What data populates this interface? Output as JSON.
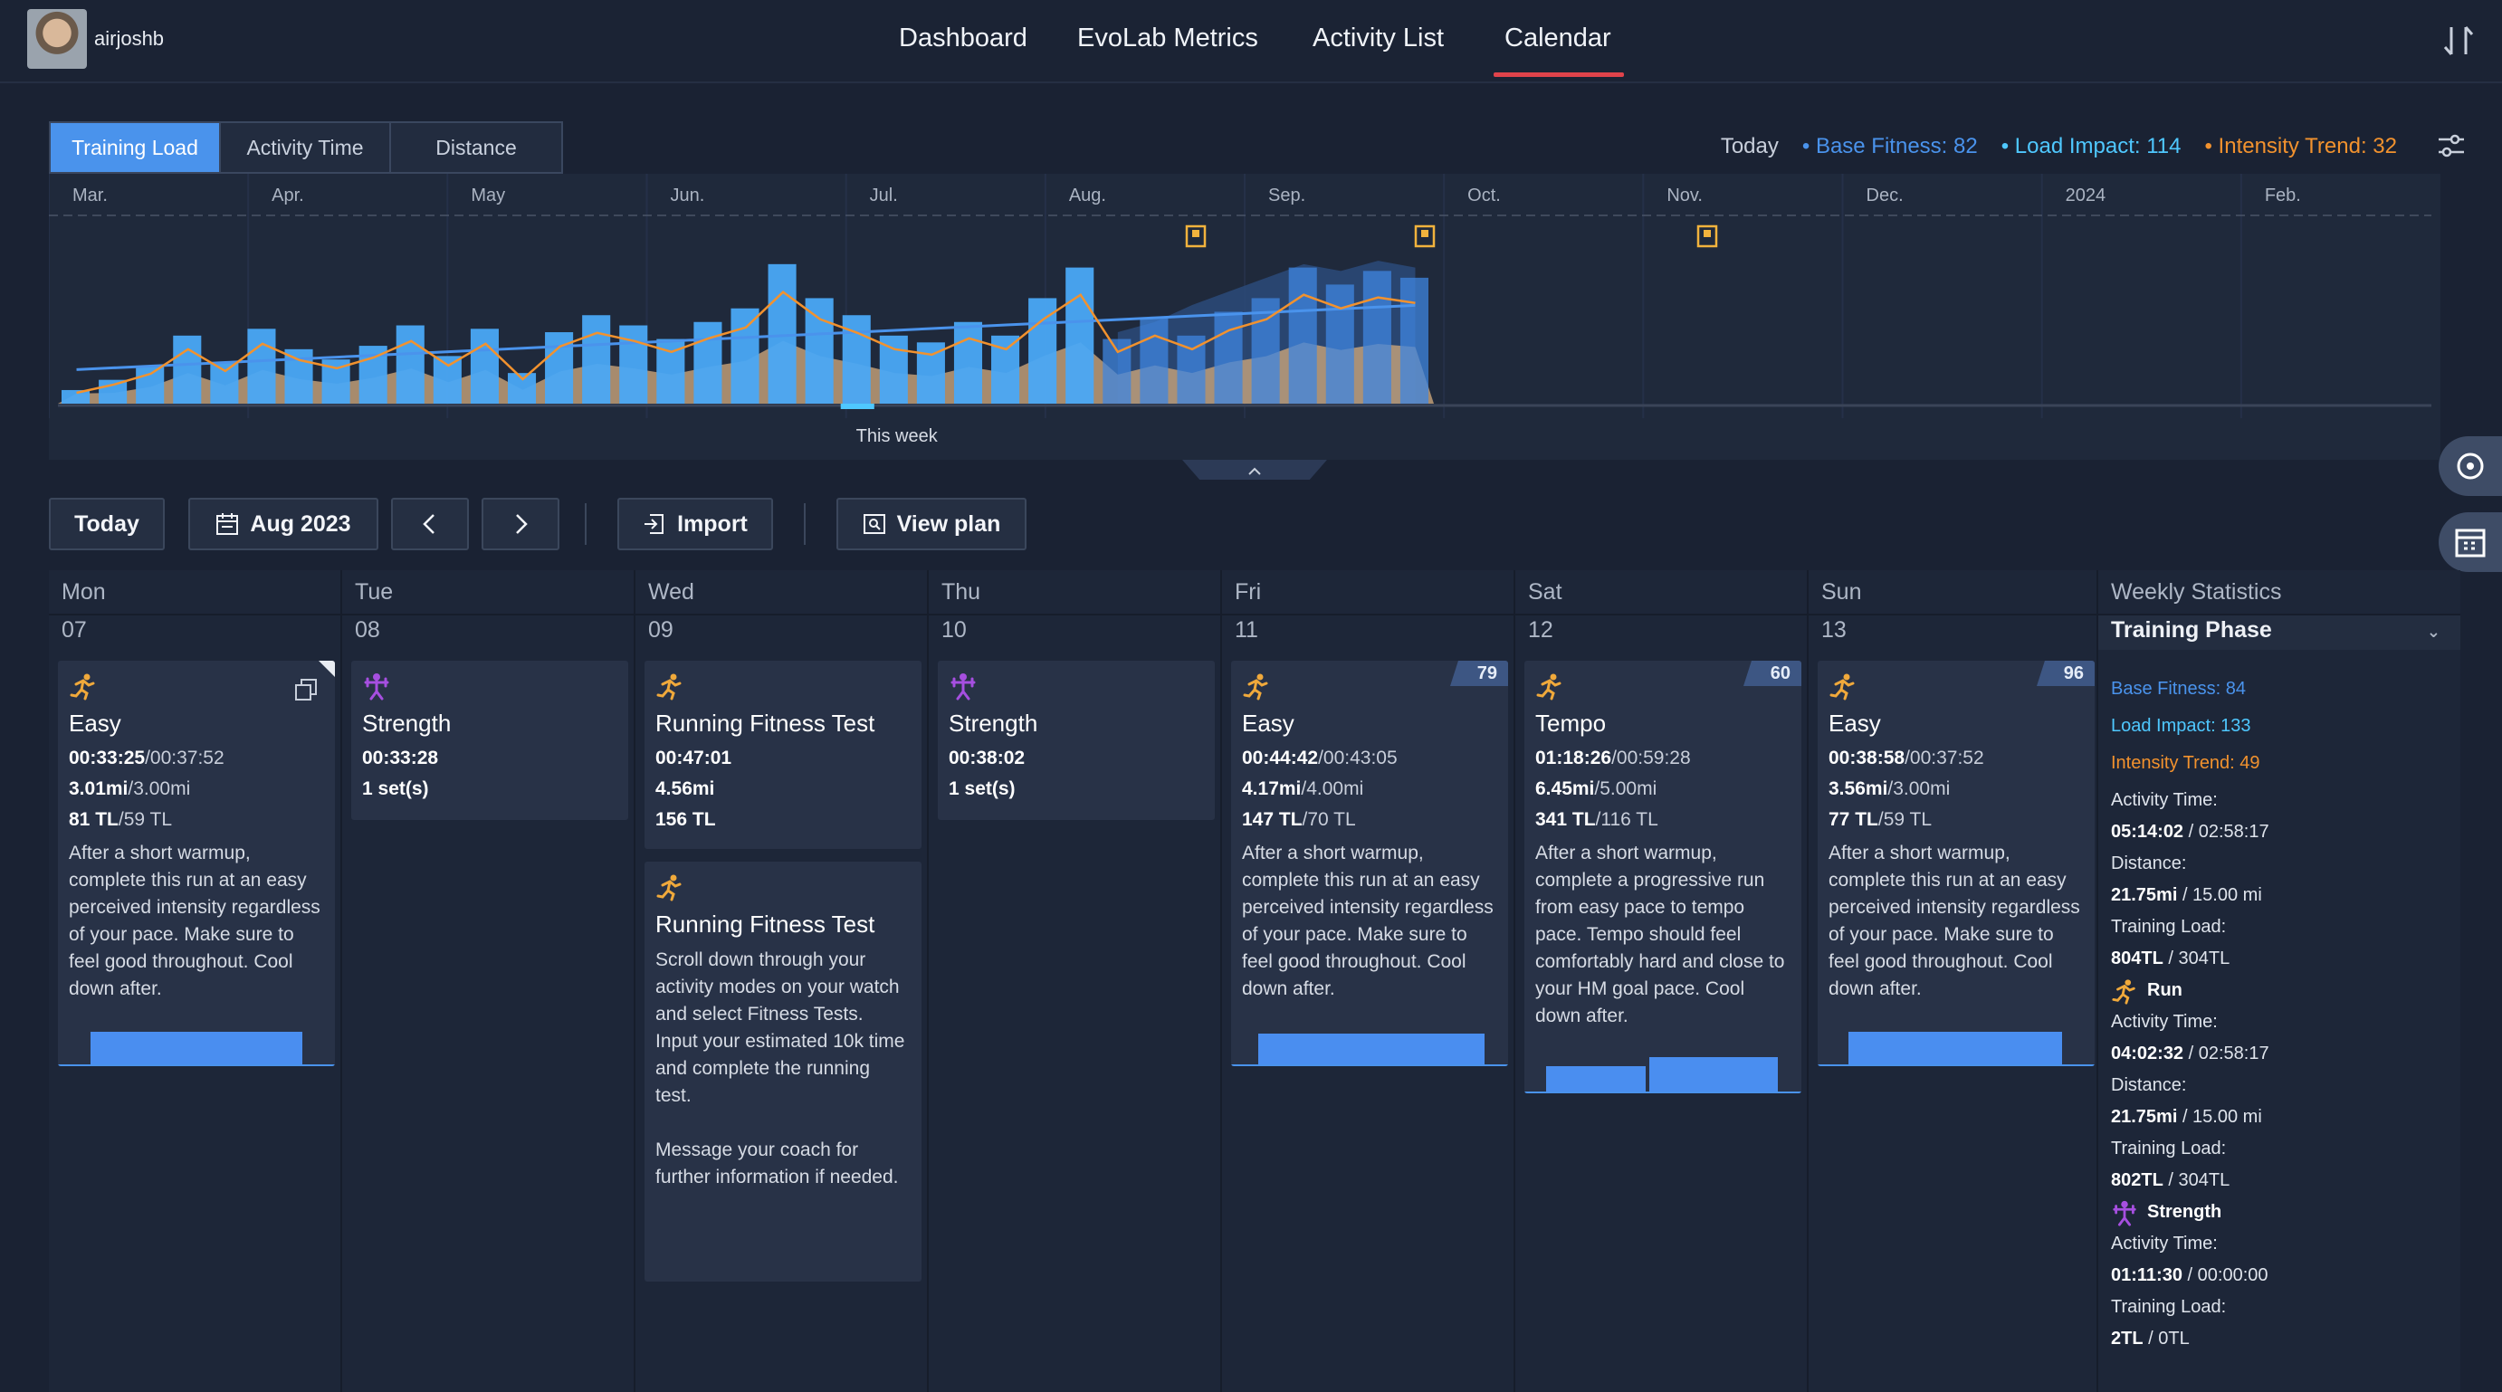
{
  "header": {
    "username": "airjoshb",
    "nav": [
      "Dashboard",
      "EvoLab Metrics",
      "Activity List",
      "Calendar"
    ],
    "active_nav": "Calendar"
  },
  "load_panel": {
    "tabs": [
      "Training Load",
      "Activity Time",
      "Distance"
    ],
    "active_tab": "Training Load",
    "today_label": "Today",
    "base_fitness": "Base Fitness: 82",
    "load_impact": "Load Impact: 114",
    "intensity_trend": "Intensity Trend: 32",
    "this_week_label": "This week",
    "colors": {
      "base": "#4a93ec",
      "load": "#4fc8ff",
      "intensity": "#f2922e"
    }
  },
  "chart_data": {
    "type": "bar",
    "months": [
      "Mar.",
      "Apr.",
      "May",
      "Jun.",
      "Jul.",
      "Aug.",
      "Sep.",
      "Oct.",
      "Nov.",
      "Dec.",
      "2024",
      "Feb."
    ],
    "weekly_load": [
      8,
      14,
      22,
      40,
      24,
      44,
      32,
      26,
      34,
      46,
      28,
      44,
      18,
      42,
      52,
      46,
      38,
      48,
      56,
      82,
      62,
      52,
      40,
      36,
      48,
      40,
      62,
      80,
      38,
      50,
      40,
      54,
      62,
      80,
      70,
      78,
      74
    ],
    "projected_load": [
      0,
      0,
      0,
      0,
      0,
      0,
      0,
      0,
      0,
      0,
      0,
      0,
      0,
      0,
      0,
      0,
      0,
      0,
      0,
      0,
      0,
      0,
      0,
      0,
      0,
      0,
      0,
      0,
      20,
      26,
      36,
      44,
      52,
      60,
      56,
      62,
      58
    ]
  },
  "toolbar": {
    "today": "Today",
    "month": "Aug 2023",
    "import": "Import",
    "view_plan": "View plan"
  },
  "calendar": {
    "days": [
      {
        "name": "Mon",
        "date": "07"
      },
      {
        "name": "Tue",
        "date": "08"
      },
      {
        "name": "Wed",
        "date": "09"
      },
      {
        "name": "Thu",
        "date": "10"
      },
      {
        "name": "Fri",
        "date": "11"
      },
      {
        "name": "Sat",
        "date": "12"
      },
      {
        "name": "Sun",
        "date": "13"
      }
    ],
    "mon": {
      "title": "Easy",
      "time": "00:33:25",
      "time_plan": "/00:37:52",
      "dist": "3.01mi",
      "dist_plan": "/3.00mi",
      "tl": "81 TL",
      "tl_plan": "/59 TL",
      "desc": "After a short warmup, complete this run at an easy perceived intensity regardless of your pace. Make sure to feel good throughout. Cool down after."
    },
    "tue": {
      "title": "Strength",
      "time": "00:33:28",
      "sets": "1 set(s)"
    },
    "wed1": {
      "title": "Running Fitness Test",
      "time": "00:47:01",
      "dist": "4.56mi",
      "tl": "156 TL"
    },
    "wed2": {
      "title": "Running Fitness Test",
      "desc1": "Scroll down through your activity modes on your watch and select Fitness Tests. Input your estimated 10k time and complete the running test.",
      "desc2": "Message your coach for further information if needed."
    },
    "thu": {
      "title": "Strength",
      "time": "00:38:02",
      "sets": "1 set(s)"
    },
    "fri": {
      "badge": "79",
      "title": "Easy",
      "time": "00:44:42",
      "time_plan": "/00:43:05",
      "dist": "4.17mi",
      "dist_plan": "/4.00mi",
      "tl": "147 TL",
      "tl_plan": "/70 TL",
      "desc": "After a short warmup, complete this run at an easy perceived intensity regardless of your pace. Make sure to feel good throughout. Cool down after."
    },
    "sat": {
      "badge": "60",
      "title": "Tempo",
      "time": "01:18:26",
      "time_plan": "/00:59:28",
      "dist": "6.45mi",
      "dist_plan": "/5.00mi",
      "tl": "341 TL",
      "tl_plan": "/116 TL",
      "desc": "After a short warmup, complete a progressive run from easy pace to tempo pace. Tempo should feel comfortably hard and close to your HM goal pace. Cool down after."
    },
    "sun": {
      "badge": "96",
      "title": "Easy",
      "time": "00:38:58",
      "time_plan": "/00:37:52",
      "dist": "3.56mi",
      "dist_plan": "/3.00mi",
      "tl": "77 TL",
      "tl_plan": "/59 TL",
      "desc": "After a short warmup, complete this run at an easy perceived intensity regardless of your pace. Make sure to feel good throughout. Cool down after."
    }
  },
  "weekly": {
    "header": "Weekly Statistics",
    "phase": "Training Phase",
    "base_fitness": "Base Fitness: 84",
    "load_impact": "Load Impact: 133",
    "intensity_trend": "Intensity Trend: 49",
    "activity_time_label": "Activity Time:",
    "distance_label": "Distance:",
    "training_load_label": "Training Load:",
    "total_time": "05:14:02",
    "total_time_plan": " / 02:58:17",
    "total_dist": "21.75mi",
    "total_dist_plan": " / 15.00 mi",
    "total_tl": "804TL",
    "total_tl_plan": " / 304TL",
    "run_label": "Run",
    "run_time": "04:02:32",
    "run_time_plan": " / 02:58:17",
    "run_dist": "21.75mi",
    "run_dist_plan": " / 15.00 mi",
    "run_tl": "802TL",
    "run_tl_plan": " / 304TL",
    "strength_label": "Strength",
    "str_time": "01:11:30",
    "str_time_plan": " / 00:00:00",
    "str_tl": "2TL",
    "str_tl_plan": " / 0TL"
  }
}
